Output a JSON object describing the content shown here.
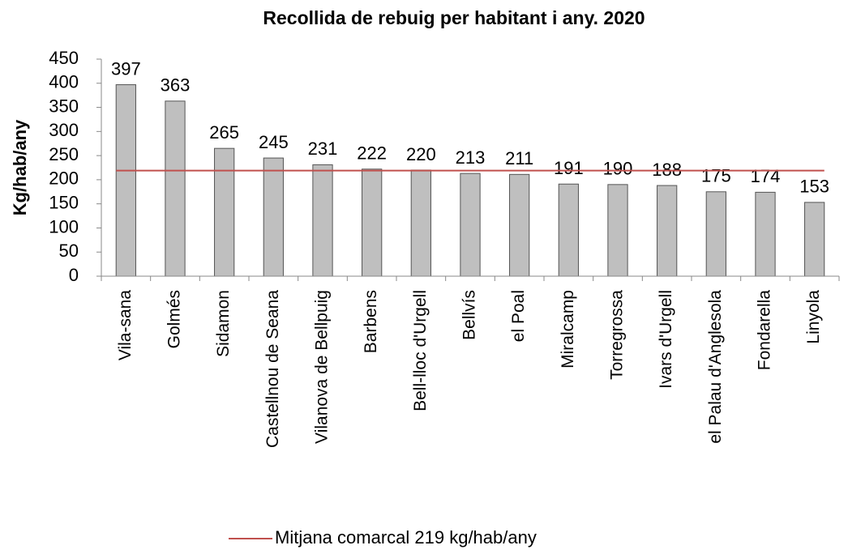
{
  "chart_data": {
    "type": "bar",
    "title": "Recollida de rebuig per habitant i any. 2020",
    "y_label": "Kg/hab/any",
    "categories": [
      "Vila-sana",
      "Golmés",
      "Sidamon",
      "Castellnou de Seana",
      "Vilanova de Bellpuig",
      "Barbens",
      "Bell-lloc d'Urgell",
      "Bellvís",
      "el Poal",
      "Miralcamp",
      "Torregrossa",
      "Ivars d'Urgell",
      "el Palau d'Anglesola",
      "Fondarella",
      "Linyola"
    ],
    "values": [
      397,
      363,
      265,
      245,
      231,
      222,
      220,
      213,
      211,
      191,
      190,
      188,
      175,
      174,
      153
    ],
    "color": "#bfbfbf",
    "reference_line": {
      "name": "Mitjana comarcal 219 kg/hab/any",
      "color": "#c0504d",
      "values": [
        219,
        219,
        219,
        219,
        219,
        219,
        219,
        219,
        219,
        219,
        219,
        219,
        219,
        219,
        219
      ]
    },
    "ylim": [
      0,
      450
    ],
    "yticks": [
      0,
      50,
      100,
      150,
      200,
      250,
      300,
      350,
      400,
      450
    ],
    "grid": false
  }
}
